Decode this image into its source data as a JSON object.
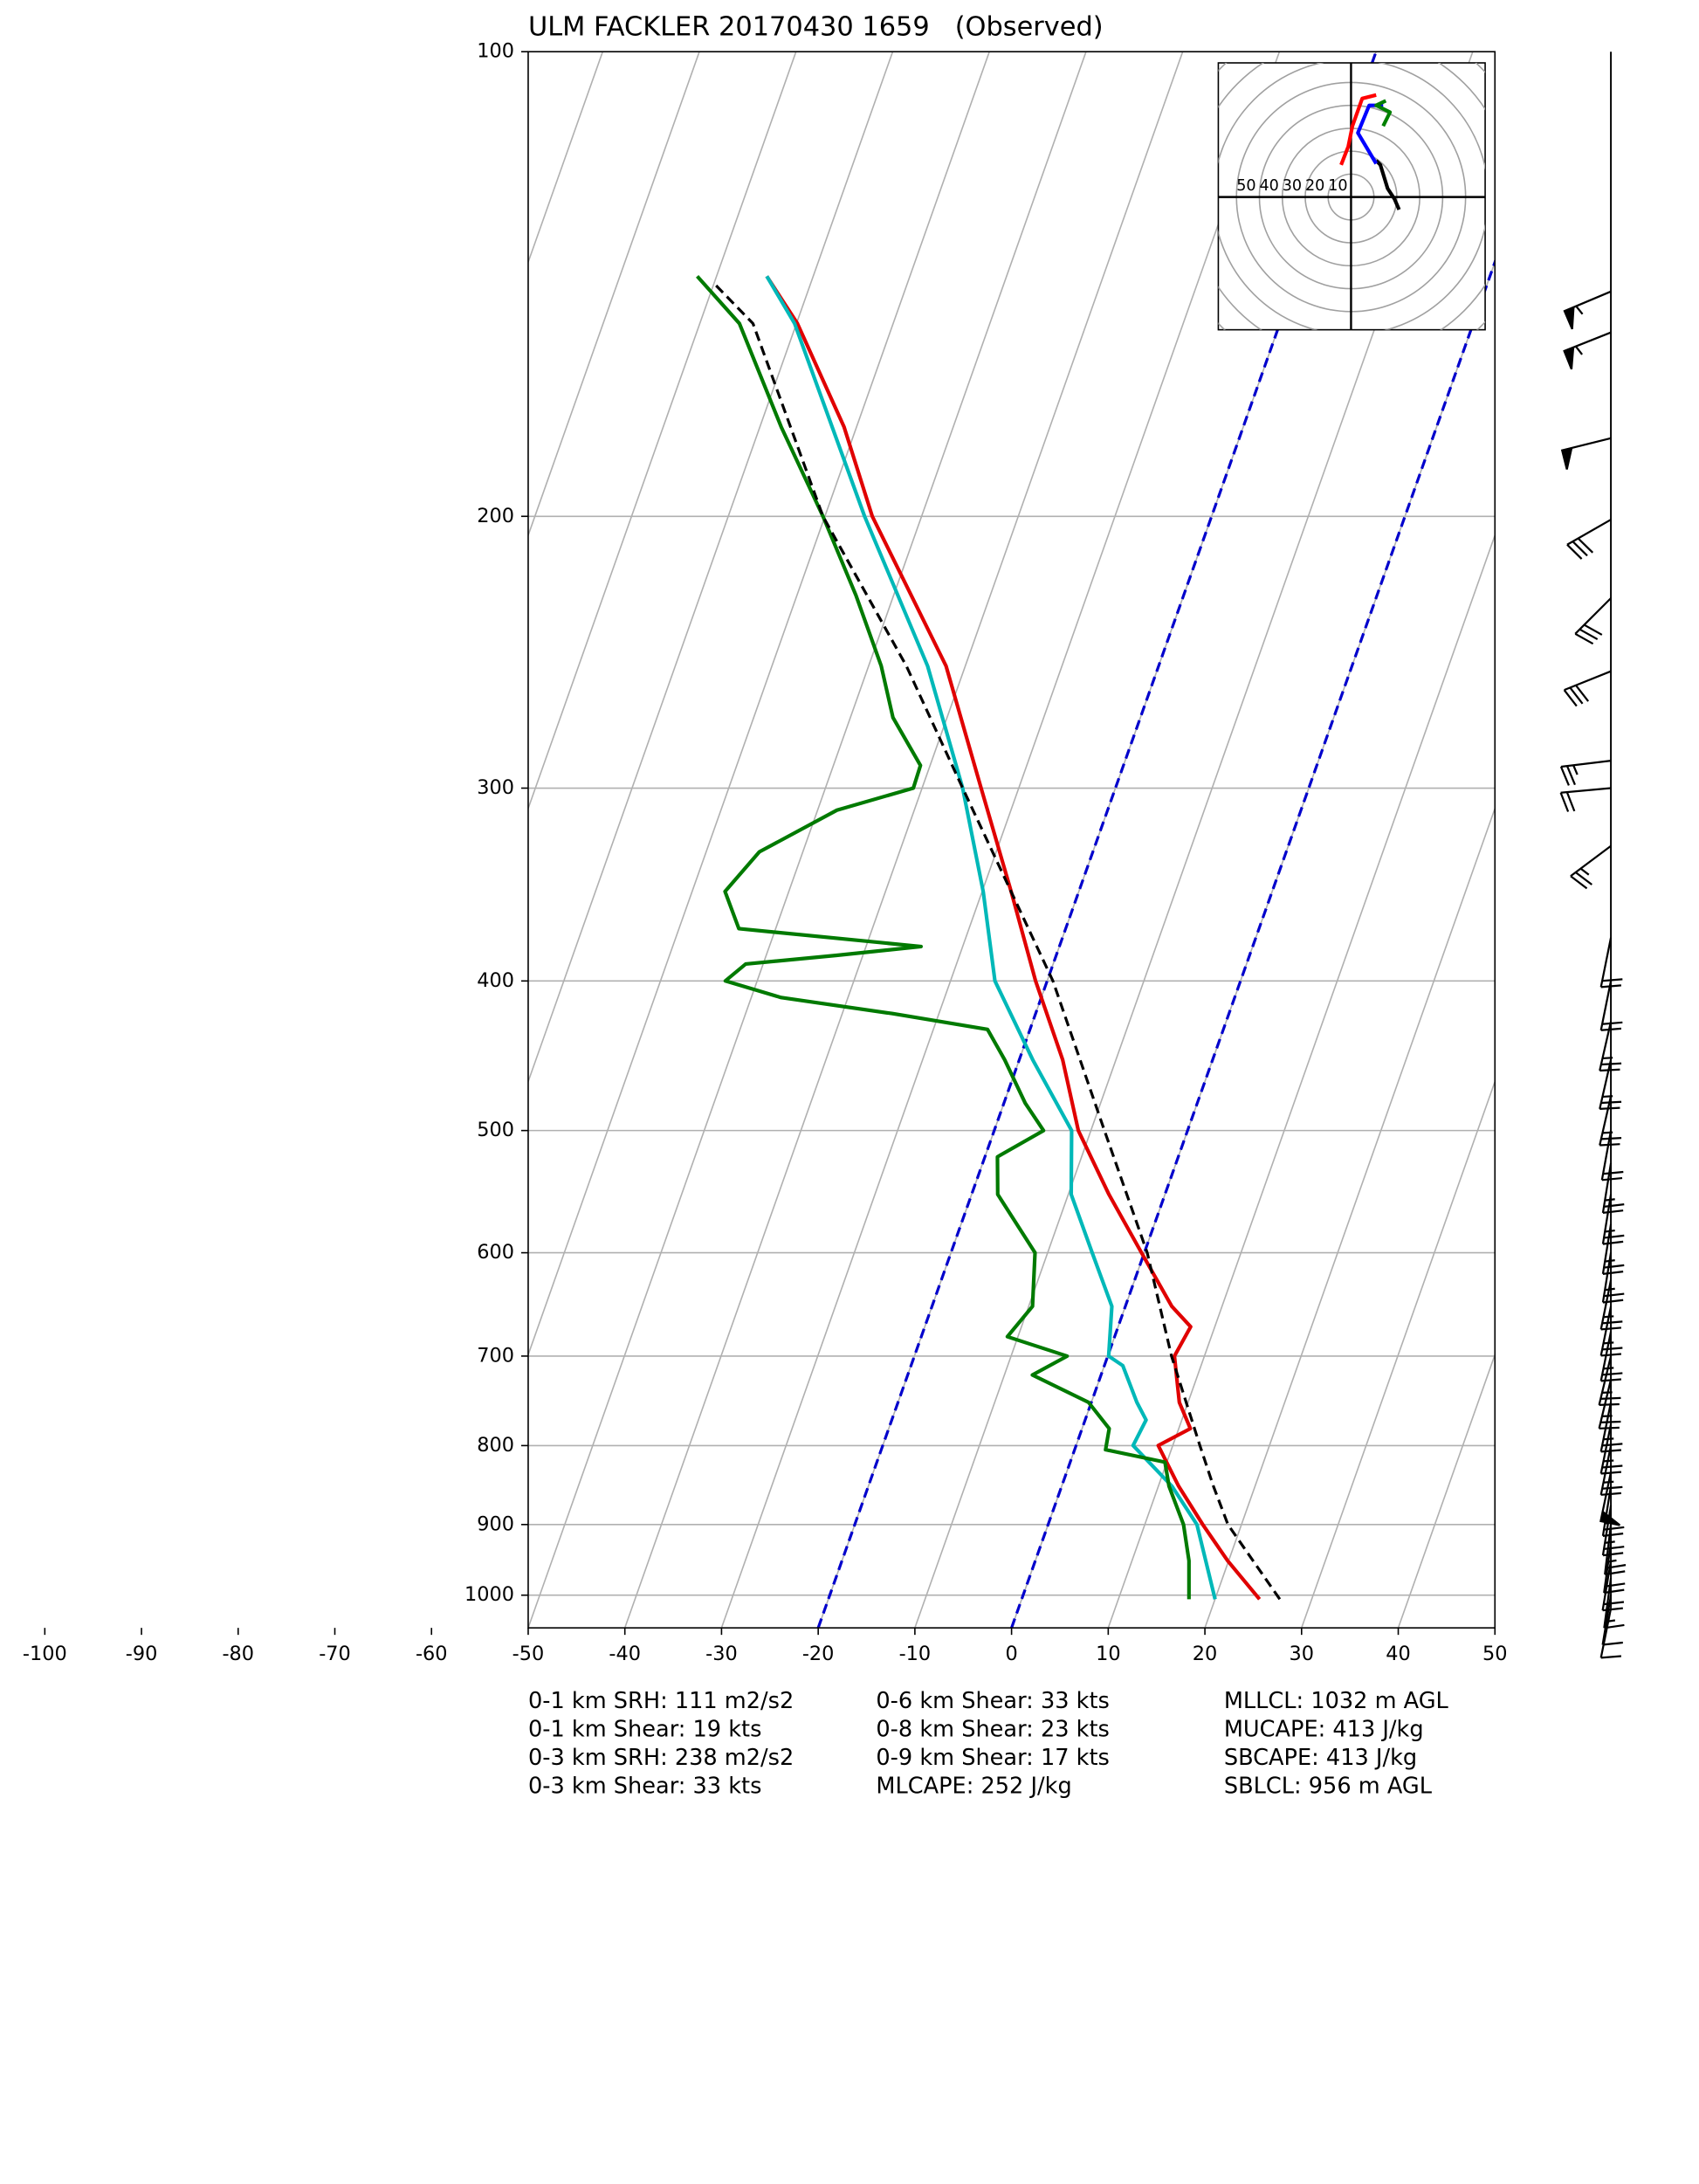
{
  "chart_data": {
    "type": "skewt",
    "title": "ULM FACKLER 20170430 1659   (Observed)",
    "xlim": [
      -50,
      50
    ],
    "ylim": [
      1050,
      100
    ],
    "log_y": true,
    "grid": true,
    "xticks": [
      -100,
      -90,
      -80,
      -70,
      -60,
      -50,
      -40,
      -30,
      -20,
      -10,
      0,
      10,
      20,
      30,
      40,
      50
    ],
    "yticks": [
      100,
      200,
      300,
      400,
      500,
      600,
      700,
      800,
      900,
      1000
    ],
    "special_isotherms": {
      "values": [
        -20,
        0
      ],
      "color": "#0000cc"
    },
    "series": [
      {
        "color": "#e00000",
        "p": [
          1006,
          950,
          900,
          850,
          800,
          780,
          750,
          700,
          670,
          650,
          600,
          550,
          500,
          450,
          400,
          350,
          300,
          250,
          200,
          175,
          150,
          139.8
        ],
        "values": [
          24.6,
          19.9,
          16.0,
          12.1,
          8.5,
          11.2,
          9.1,
          6.9,
          7.5,
          4.8,
          -0.3,
          -5.8,
          -11.3,
          -15.5,
          -21.2,
          -27.0,
          -33.9,
          -42.0,
          -55.1,
          -61.3,
          -69.9,
          -74.8
        ]
      },
      {
        "color": "#00b8b8",
        "p": [
          1006,
          900,
          850,
          800,
          770,
          750,
          710,
          700,
          650,
          600,
          550,
          500,
          450,
          400,
          350,
          300,
          250,
          200,
          150,
          139.8
        ],
        "values": [
          20.0,
          15.4,
          11.4,
          5.9,
          6.3,
          4.7,
          1.9,
          0.1,
          -1.4,
          -5.4,
          -9.7,
          -12.0,
          -18.6,
          -25.4,
          -29.9,
          -35.8,
          -43.9,
          -55.9,
          -70.2,
          -74.8
        ]
      },
      {
        "color": "#007a00",
        "p": [
          1006,
          950,
          900,
          850,
          820,
          805,
          780,
          750,
          720,
          700,
          680,
          650,
          600,
          550,
          520,
          500,
          480,
          450,
          430,
          420,
          410,
          400,
          390,
          385,
          380,
          370,
          350,
          330,
          310,
          300,
          290,
          270,
          250,
          225,
          200,
          175,
          150,
          139.8
        ],
        "values": [
          17.3,
          15.9,
          14.0,
          11.1,
          9.8,
          3.2,
          2.8,
          -0.3,
          -7.1,
          -4.2,
          -11.1,
          -9.6,
          -11.3,
          -17.3,
          -18.7,
          -14.9,
          -17.8,
          -21.5,
          -24.4,
          -34.8,
          -46.9,
          -53.3,
          -51.8,
          -42.7,
          -34.3,
          -53.8,
          -56.6,
          -54.5,
          -48.0,
          -40.9,
          -41.0,
          -45.6,
          -48.7,
          -53.9,
          -60.2,
          -67.8,
          -75.9,
          -82.0
        ]
      },
      {
        "color": "#000000",
        "dashed": true,
        "p": [
          1006,
          900,
          850,
          800,
          700,
          600,
          500,
          400,
          300,
          250,
          200,
          150,
          141.3
        ],
        "values": [
          26.7,
          18.6,
          15.7,
          12.8,
          6.6,
          0.3,
          -8.6,
          -19.4,
          -35.8,
          -46.1,
          -60.2,
          -74.5,
          -80.0
        ]
      }
    ],
    "barbs": {
      "p": [
        143,
        152,
        178,
        201,
        226,
        252,
        288,
        300,
        327,
        375,
        400,
        425,
        450,
        475,
        500,
        525,
        550,
        575,
        600,
        625,
        650,
        675,
        700,
        725,
        750,
        775,
        800,
        832,
        850,
        875,
        900,
        925,
        950,
        975,
        1000,
        1020
      ],
      "u": [
        52,
        50,
        48,
        28,
        20,
        30,
        25,
        22,
        20,
        4,
        4,
        5,
        5,
        5,
        4,
        4,
        4,
        4,
        4,
        5,
        5,
        5,
        6,
        6,
        5,
        5,
        5,
        10,
        4,
        4,
        3,
        3,
        3,
        2,
        2,
        2
      ],
      "v": [
        22,
        20,
        12,
        16,
        20,
        12,
        3,
        2,
        15,
        20,
        20,
        22,
        22,
        22,
        22,
        25,
        25,
        25,
        25,
        25,
        25,
        25,
        25,
        25,
        25,
        25,
        25,
        48,
        25,
        25,
        25,
        22,
        18,
        15,
        12,
        10
      ]
    },
    "hodograph": {
      "rings": [
        10,
        20,
        30,
        40,
        50,
        60,
        70,
        80
      ],
      "ring_labels": [
        50,
        40,
        30,
        20,
        10
      ],
      "series": [
        {
          "color": "#000000",
          "u": [
            21,
            19,
            16,
            12.8,
            11
          ],
          "v": [
            -5.5,
            -1,
            3.7,
            14,
            15.9
          ]
        },
        {
          "color": "#0000ff",
          "u": [
            11,
            3,
            7.9,
            14
          ],
          "v": [
            14.6,
            28,
            40,
            40
          ]
        },
        {
          "color": "#008000",
          "u": [
            14,
            17,
            11,
            15.2
          ],
          "v": [
            31,
            37,
            40,
            42
          ]
        },
        {
          "color": "#ff0000",
          "u": [
            11,
            4.9,
            0.6,
            -1.2,
            -4.3
          ],
          "v": [
            44.5,
            43,
            31,
            22,
            14
          ]
        }
      ]
    },
    "stats": [
      [
        "0-1 km SRH: 111 m2/s2",
        "0-1 km Shear: 19 kts",
        "0-3 km SRH: 238 m2/s2",
        "0-3 km Shear: 33 kts"
      ],
      [
        "0-6 km Shear: 33 kts",
        "0-8 km Shear: 23 kts",
        "0-9 km Shear: 17 kts",
        "MLCAPE: 252 J/kg"
      ],
      [
        "MLLCL: 1032 m AGL",
        "MUCAPE: 413 J/kg",
        "SBCAPE: 413 J/kg",
        "SBLCL: 956 m AGL"
      ]
    ]
  }
}
